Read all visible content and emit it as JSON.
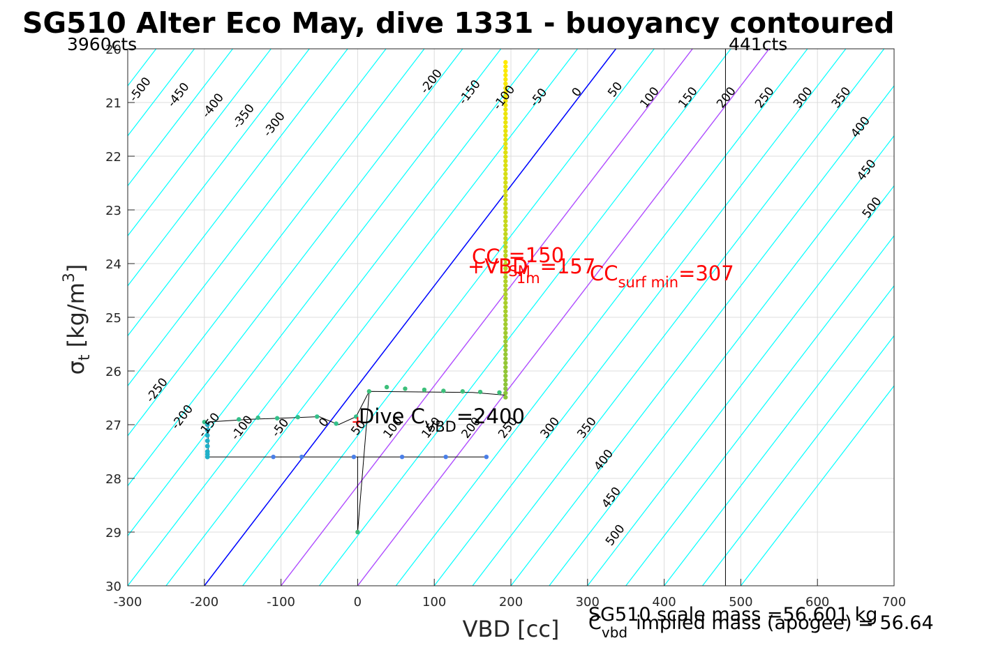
{
  "title": "SG510 Alter Eco May, dive 1331 - buoyancy contoured",
  "corner_labels": {
    "left": "3960cts",
    "right": "441cts"
  },
  "chart_data": {
    "type": "scatter",
    "xlabel": "VBD [cc]",
    "ylabel_main": "σ",
    "ylabel_sub": "t",
    "ylabel_unit": " [kg/m",
    "ylabel_sup": "3",
    "ylabel_end": "]",
    "xlim": [
      -300,
      700
    ],
    "ylim": [
      20,
      30
    ],
    "y_reversed": true,
    "grid": true,
    "x_ticks": [
      -300,
      -200,
      -100,
      0,
      100,
      200,
      300,
      400,
      500,
      600,
      700
    ],
    "x_tick_labels": [
      "-300",
      "-200",
      "-100",
      "0",
      "100",
      "200",
      "300",
      "400",
      "500",
      "600",
      "700"
    ],
    "y_ticks": [
      20,
      21,
      22,
      23,
      24,
      25,
      26,
      27,
      28,
      29,
      30
    ],
    "y_tick_labels": [
      "20",
      "21",
      "22",
      "23",
      "24",
      "25",
      "26",
      "27",
      "28",
      "29",
      "30"
    ],
    "colors": {
      "contour": "#00ffff",
      "zero_line": "#0000ff",
      "min_lines": "#bf40ff",
      "profile_line": "#000000",
      "annotation": "#ff0000",
      "limit_line": "#000000"
    },
    "contour_slope_vbd_per_sigma": 35.2,
    "contour_levels": [
      -500,
      -450,
      -400,
      -350,
      -300,
      -250,
      -200,
      -150,
      -100,
      -50,
      0,
      50,
      100,
      150,
      200,
      250,
      300,
      350,
      400,
      450,
      500
    ],
    "zero_line": {
      "x_at_y30": -200,
      "x_at_y20": 337
    },
    "min_lines": [
      {
        "x_at_y30": -100,
        "x_at_y20": 437
      },
      {
        "x_at_y30": 0,
        "x_at_y20": 537
      }
    ],
    "vertical_limit_x": 480,
    "contour_labels_upper": [
      {
        "text": "-500",
        "x": -280,
        "y": 20.8
      },
      {
        "text": "-450",
        "x": -230,
        "y": 20.9
      },
      {
        "text": "-400",
        "x": -185,
        "y": 21.1
      },
      {
        "text": "-350",
        "x": -145,
        "y": 21.3
      },
      {
        "text": "-300",
        "x": -105,
        "y": 21.45
      },
      {
        "text": "-200",
        "x": 100,
        "y": 20.65
      },
      {
        "text": "-150",
        "x": 150,
        "y": 20.85
      },
      {
        "text": "-100",
        "x": 195,
        "y": 20.95
      },
      {
        "text": "-50",
        "x": 240,
        "y": 20.95
      },
      {
        "text": "0",
        "x": 290,
        "y": 20.85
      },
      {
        "text": "50",
        "x": 340,
        "y": 20.8
      },
      {
        "text": "100",
        "x": 385,
        "y": 20.95
      },
      {
        "text": "150",
        "x": 435,
        "y": 20.95
      },
      {
        "text": "200",
        "x": 485,
        "y": 20.95
      },
      {
        "text": "250",
        "x": 535,
        "y": 20.95
      },
      {
        "text": "300",
        "x": 585,
        "y": 20.95
      },
      {
        "text": "350",
        "x": 635,
        "y": 20.95
      },
      {
        "text": "400",
        "x": 660,
        "y": 21.5
      },
      {
        "text": "450",
        "x": 668,
        "y": 22.3
      },
      {
        "text": "500",
        "x": 675,
        "y": 23.0
      }
    ],
    "contour_labels_lower": [
      {
        "text": "-250",
        "x": -258,
        "y": 26.4
      },
      {
        "text": "-200",
        "x": -225,
        "y": 26.9
      },
      {
        "text": "-150",
        "x": -190,
        "y": 27.05
      },
      {
        "text": "-100",
        "x": -147,
        "y": 27.1
      },
      {
        "text": "-50",
        "x": -97,
        "y": 27.1
      },
      {
        "text": "0",
        "x": -40,
        "y": 27.0
      },
      {
        "text": "50",
        "x": 5,
        "y": 27.1
      },
      {
        "text": "100",
        "x": 50,
        "y": 27.1
      },
      {
        "text": "150",
        "x": 100,
        "y": 27.1
      },
      {
        "text": "200",
        "x": 152,
        "y": 27.1
      },
      {
        "text": "250",
        "x": 200,
        "y": 27.1
      },
      {
        "text": "300",
        "x": 255,
        "y": 27.1
      },
      {
        "text": "350",
        "x": 303,
        "y": 27.1
      },
      {
        "text": "400",
        "x": 325,
        "y": 27.7
      },
      {
        "text": "450",
        "x": 335,
        "y": 28.4
      },
      {
        "text": "500",
        "x": 340,
        "y": 29.1
      }
    ],
    "profile_path": [
      [
        193,
        20.25
      ],
      [
        193,
        26.45
      ],
      [
        150,
        26.4
      ],
      [
        15,
        26.38
      ],
      [
        -2,
        26.85
      ],
      [
        -25,
        27.0
      ],
      [
        -50,
        26.85
      ],
      [
        -140,
        26.9
      ],
      [
        -195,
        26.95
      ],
      [
        -195,
        27.6
      ],
      [
        170,
        27.6
      ],
      [
        0,
        27.6
      ],
      [
        0,
        29.0
      ],
      [
        15,
        26.4
      ]
    ],
    "points_yellow_vertical": {
      "x": 193,
      "y_from": 20.25,
      "y_to": 26.55,
      "step": 0.08
    },
    "points_green_upper": [
      [
        15,
        26.38
      ],
      [
        38,
        26.3
      ],
      [
        62,
        26.33
      ],
      [
        87,
        26.35
      ],
      [
        112,
        26.37
      ],
      [
        137,
        26.38
      ],
      [
        160,
        26.39
      ],
      [
        185,
        26.4
      ]
    ],
    "points_green_mid": [
      [
        -200,
        26.95
      ],
      [
        -155,
        26.9
      ],
      [
        -130,
        26.87
      ],
      [
        -105,
        26.88
      ],
      [
        -78,
        26.86
      ],
      [
        -53,
        26.85
      ],
      [
        -28,
        26.98
      ],
      [
        -2,
        26.85
      ]
    ],
    "points_teal_left": [
      [
        -196,
        27.0
      ],
      [
        -196,
        27.1
      ],
      [
        -196,
        27.2
      ],
      [
        -196,
        27.3
      ],
      [
        -196,
        27.4
      ],
      [
        -196,
        27.5
      ],
      [
        -196,
        27.55
      ],
      [
        -196,
        27.6
      ]
    ],
    "points_blue_bottom": [
      [
        -110,
        27.6
      ],
      [
        -73,
        27.6
      ],
      [
        -5,
        27.6
      ],
      [
        58,
        27.6
      ],
      [
        115,
        27.6
      ],
      [
        168,
        27.6
      ]
    ],
    "point_bottom": [
      0,
      29.0
    ],
    "cross_marker": [
      0,
      26.95
    ],
    "annotations": {
      "cc_main": "CC",
      "cc_eq": "=150",
      "vbd_main": "+VBD",
      "vbd_sub": "SM",
      "vbd_sub2": "1m",
      "vbd_eq": "=157",
      "ccsurf_main": "CC",
      "ccsurf_sub": "surf min",
      "ccsurf_eq": "=307",
      "dive_main": "Dive C",
      "dive_sub": "VBD",
      "dive_eq": "=2400",
      "scale_mass": "SG510 scale mass =56.601 kg",
      "cvbd_main": "C",
      "cvbd_sub": "vbd",
      "implied_mass": "implied mass (apogee) = 56.64"
    }
  }
}
